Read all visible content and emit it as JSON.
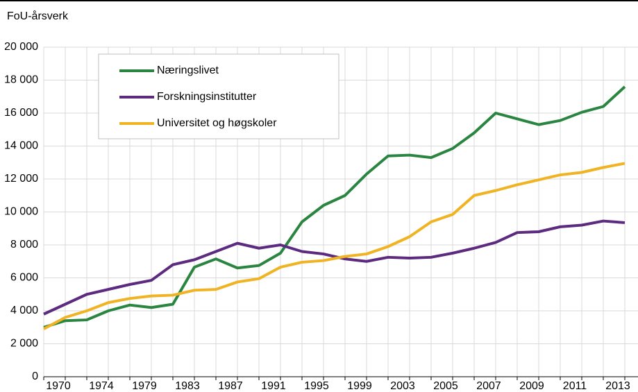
{
  "chart_data": {
    "type": "line",
    "y_label": "FoU-årsverk",
    "categories": [
      "1970",
      null,
      "1974",
      null,
      "1979",
      null,
      "1983",
      null,
      "1987",
      null,
      "1991",
      null,
      "1995",
      null,
      "1999",
      null,
      "2003",
      null,
      "2005",
      null,
      "2007",
      null,
      "2009",
      null,
      "2011",
      null,
      "2013",
      null
    ],
    "series": [
      {
        "name": "Næringslivet",
        "color": "#2a8540",
        "values": [
          3000,
          3400,
          3450,
          4000,
          4350,
          4200,
          4400,
          6650,
          7150,
          6600,
          6750,
          7500,
          9400,
          10400,
          11000,
          12300,
          13400,
          13450,
          13300,
          13850,
          14800,
          16000,
          15650,
          15300,
          15550,
          16050,
          16400,
          17600
        ]
      },
      {
        "name": "Forskningsinstitutter",
        "color": "#5c2a7e",
        "values": [
          3800,
          4400,
          5000,
          5300,
          5600,
          5850,
          6800,
          7100,
          7600,
          8100,
          7800,
          8000,
          7600,
          7450,
          7150,
          7000,
          7250,
          7200,
          7250,
          7500,
          7800,
          8150,
          8750,
          8800,
          9100,
          9200,
          9450,
          9350
        ]
      },
      {
        "name": "Universitet og høgskoler",
        "color": "#f0b323",
        "values": [
          2900,
          3600,
          4000,
          4500,
          4750,
          4900,
          4950,
          5250,
          5300,
          5750,
          5950,
          6650,
          6950,
          7050,
          7300,
          7450,
          7900,
          8500,
          9400,
          9850,
          11000,
          11300,
          11650,
          11950,
          12250,
          12400,
          12700,
          12950
        ]
      }
    ],
    "ylim": [
      0,
      20000
    ],
    "yticks": [
      0,
      {
        "value": 2000,
        "label": "2 000"
      },
      {
        "value": 4000,
        "label": "4 000"
      },
      {
        "value": 6000,
        "label": "6 000"
      },
      {
        "value": 8000,
        "label": "8 000"
      },
      {
        "value": 10000,
        "label": "10 000"
      },
      {
        "value": 12000,
        "label": "12 000"
      },
      {
        "value": 14000,
        "label": "14 000"
      },
      {
        "value": 16000,
        "label": "16 000"
      },
      {
        "value": 18000,
        "label": "18 000"
      },
      {
        "value": 20000,
        "label": "20 000"
      }
    ],
    "grid": true,
    "legend": "upper left"
  }
}
